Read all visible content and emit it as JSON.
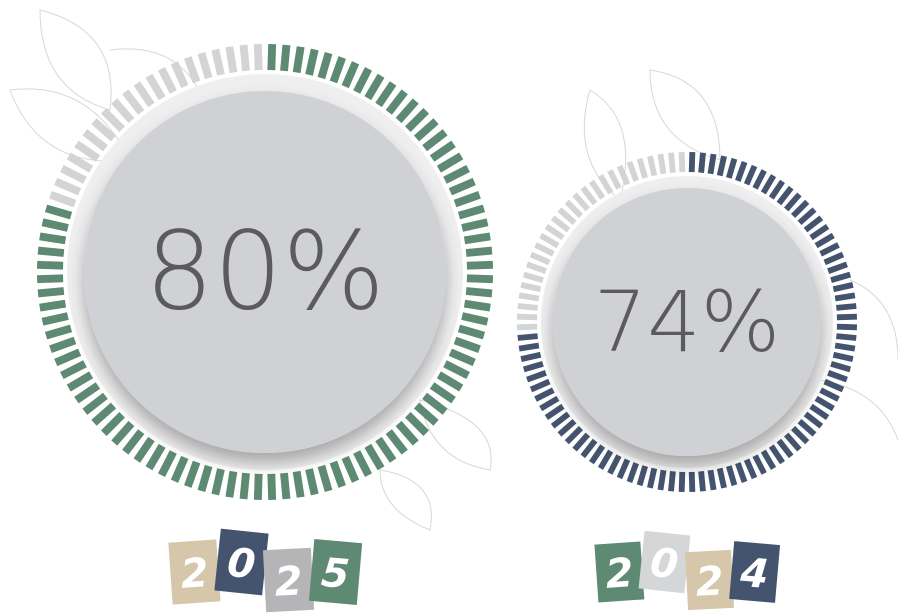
{
  "chart_data": [
    {
      "type": "gauge",
      "values": [
        80
      ],
      "value_labels": [
        "80%"
      ],
      "ylim": [
        0,
        100
      ],
      "color": "#5e8a73",
      "year_digits": [
        "2",
        "0",
        "2",
        "5"
      ],
      "tile_colors": [
        "#d6c6aa",
        "#44546f",
        "#b5b5b8",
        "#5e8a73"
      ]
    },
    {
      "type": "gauge",
      "values": [
        74
      ],
      "value_labels": [
        "74%"
      ],
      "ylim": [
        0,
        100
      ],
      "color": "#44546f",
      "year_digits": [
        "2",
        "0",
        "2",
        "4"
      ],
      "tile_colors": [
        "#5e8a73",
        "#d5d6d8",
        "#d6c6aa",
        "#44546f"
      ]
    }
  ]
}
